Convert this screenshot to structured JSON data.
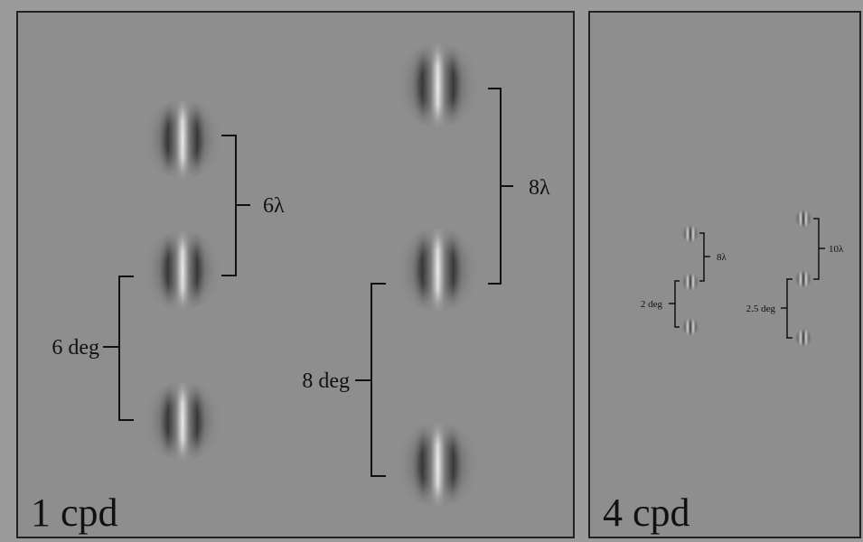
{
  "panels": [
    {
      "name": "1 cpd",
      "label": "1 cpd",
      "gabors": [
        {
          "column": "A",
          "index": 1
        },
        {
          "column": "A",
          "index": 2
        },
        {
          "column": "A",
          "index": 3
        },
        {
          "column": "B",
          "index": 1
        },
        {
          "column": "B",
          "index": 2
        },
        {
          "column": "B",
          "index": 3
        }
      ],
      "annotations": [
        {
          "label": "6λ",
          "kind": "wavelength-separation",
          "between": "A1-A2"
        },
        {
          "label": "6 deg",
          "kind": "degree-separation",
          "between": "A2-A3"
        },
        {
          "label": "8λ",
          "kind": "wavelength-separation",
          "between": "B1-B2"
        },
        {
          "label": "8 deg",
          "kind": "degree-separation",
          "between": "B2-B3"
        }
      ]
    },
    {
      "name": "4 cpd",
      "label": "4 cpd",
      "gabors": [
        {
          "column": "A",
          "index": 1
        },
        {
          "column": "A",
          "index": 2
        },
        {
          "column": "A",
          "index": 3
        },
        {
          "column": "B",
          "index": 1
        },
        {
          "column": "B",
          "index": 2
        },
        {
          "column": "B",
          "index": 3
        }
      ],
      "annotations": [
        {
          "label": "8λ",
          "kind": "wavelength-separation",
          "between": "A1-A2"
        },
        {
          "label": "2 deg",
          "kind": "degree-separation",
          "between": "A2-A3"
        },
        {
          "label": "10λ",
          "kind": "wavelength-separation",
          "between": "B1-B2"
        },
        {
          "label": "2.5 deg",
          "kind": "degree-separation",
          "between": "B2-B3"
        }
      ]
    }
  ],
  "colors": {
    "page_background": "#9b9b9b",
    "panel_background": "#8e8e8e",
    "panel_border": "#222222",
    "ink": "#111111"
  }
}
